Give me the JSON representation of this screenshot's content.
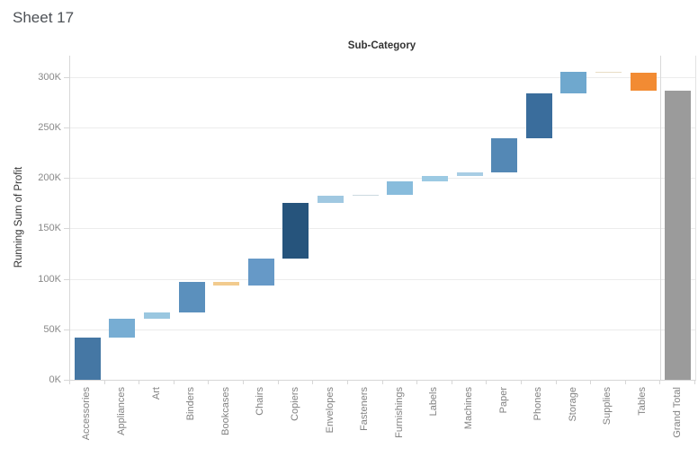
{
  "title": "Sheet 17",
  "chart_data": {
    "type": "bar",
    "subtype": "waterfall",
    "title": "Sub-Category",
    "xlabel": "",
    "ylabel": "Running Sum of Profit",
    "legend": "none",
    "grid": "horizontal",
    "ylim": [
      0,
      321000
    ],
    "y_ticks": [
      {
        "label": "0K",
        "value": 0
      },
      {
        "label": "50K",
        "value": 50000
      },
      {
        "label": "100K",
        "value": 100000
      },
      {
        "label": "150K",
        "value": 150000
      },
      {
        "label": "200K",
        "value": 200000
      },
      {
        "label": "250K",
        "value": 250000
      },
      {
        "label": "300K",
        "value": 300000
      }
    ],
    "categories": [
      "Accessories",
      "Appliances",
      "Art",
      "Binders",
      "Bookcases",
      "Chairs",
      "Copiers",
      "Envelopes",
      "Fasteners",
      "Furnishings",
      "Labels",
      "Machines",
      "Paper",
      "Phones",
      "Storage",
      "Supplies",
      "Tables",
      "Grand Total"
    ],
    "segments": [
      {
        "label": "Accessories",
        "profit": 41937,
        "start": 0,
        "end": 41937,
        "color": "#4577a4"
      },
      {
        "label": "Appliances",
        "profit": 18138,
        "start": 41937,
        "end": 60075,
        "color": "#77add3"
      },
      {
        "label": "Art",
        "profit": 6528,
        "start": 60075,
        "end": 66603,
        "color": "#9ac7e0"
      },
      {
        "label": "Binders",
        "profit": 30222,
        "start": 66603,
        "end": 96825,
        "color": "#5b90bd"
      },
      {
        "label": "Bookcases",
        "profit": -3472,
        "start": 96825,
        "end": 93353,
        "color": "#f2cb8e"
      },
      {
        "label": "Chairs",
        "profit": 26590,
        "start": 93353,
        "end": 119943,
        "color": "#6699c7"
      },
      {
        "label": "Copiers",
        "profit": 55618,
        "start": 119943,
        "end": 175561,
        "color": "#26547c"
      },
      {
        "label": "Envelopes",
        "profit": 6964,
        "start": 175561,
        "end": 182525,
        "color": "#a0c8e1"
      },
      {
        "label": "Fasteners",
        "profit": 950,
        "start": 182525,
        "end": 183475,
        "color": "#ccd9e0"
      },
      {
        "label": "Furnishings",
        "profit": 13059,
        "start": 183475,
        "end": 196534,
        "color": "#88bcdc"
      },
      {
        "label": "Labels",
        "profit": 5546,
        "start": 196534,
        "end": 202080,
        "color": "#9ccae3"
      },
      {
        "label": "Machines",
        "profit": 3385,
        "start": 202080,
        "end": 205465,
        "color": "#a8cde4"
      },
      {
        "label": "Paper",
        "profit": 34054,
        "start": 205465,
        "end": 239519,
        "color": "#5488b5"
      },
      {
        "label": "Phones",
        "profit": 44516,
        "start": 239519,
        "end": 284035,
        "color": "#3a6d9c"
      },
      {
        "label": "Storage",
        "profit": 21279,
        "start": 284035,
        "end": 305314,
        "color": "#6fa8ce"
      },
      {
        "label": "Supplies",
        "profit": -1189,
        "start": 305314,
        "end": 304125,
        "color": "#e8ddc6"
      },
      {
        "label": "Tables",
        "profit": -17725,
        "start": 304125,
        "end": 286400,
        "color": "#f28b33"
      },
      {
        "label": "Grand Total",
        "profit": 286397,
        "start": 0,
        "end": 286397,
        "color": "#9b9b9b",
        "is_total": true
      }
    ]
  },
  "style": {
    "accent_dark_blue": "#26547c",
    "accent_orange": "#f28b33",
    "total_gray": "#9b9b9b",
    "grid_color": "#ececec",
    "axis_line_color": "#d7d7d7",
    "tick_label_color": "#888888",
    "header_text_color": "#333333",
    "title_color": "#4d5156"
  }
}
